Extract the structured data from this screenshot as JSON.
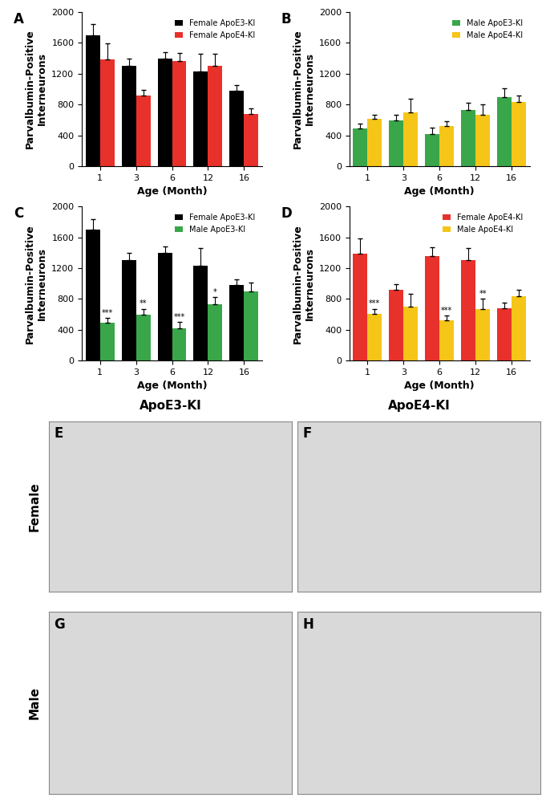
{
  "chart_data": [
    {
      "type": "bar",
      "title": "A",
      "categories": [
        "1",
        "3",
        "6",
        "12",
        "16"
      ],
      "x_label": "Age (Month)",
      "y_label": "Parvalbumin-Positive\nInterneurons",
      "ylim": [
        0,
        2000
      ],
      "yticks": [
        0,
        400,
        800,
        1200,
        1600,
        2000
      ],
      "legend": "upper right",
      "series": [
        {
          "name": "Female ApoE3-KI",
          "color": "#000000",
          "values": [
            1700,
            1300,
            1400,
            1230,
            980
          ],
          "errors": [
            140,
            100,
            80,
            230,
            70
          ]
        },
        {
          "name": "Female ApoE4-KI",
          "color": "#e8312b",
          "values": [
            1390,
            920,
            1360,
            1300,
            680
          ],
          "errors": [
            200,
            70,
            110,
            160,
            70
          ]
        }
      ]
    },
    {
      "type": "bar",
      "title": "B",
      "categories": [
        "1",
        "3",
        "6",
        "12",
        "16"
      ],
      "x_label": "Age (Month)",
      "y_label": "Parvalbumin-Positive\nInterneurons",
      "ylim": [
        0,
        2000
      ],
      "yticks": [
        0,
        400,
        800,
        1200,
        1600,
        2000
      ],
      "legend": "upper right",
      "series": [
        {
          "name": "Male ApoE3-KI",
          "color": "#3aa64a",
          "values": [
            490,
            590,
            420,
            730,
            900
          ],
          "errors": [
            60,
            80,
            80,
            90,
            110
          ]
        },
        {
          "name": "Male ApoE4-KI",
          "color": "#f5c518",
          "values": [
            610,
            700,
            520,
            670,
            830
          ],
          "errors": [
            60,
            170,
            60,
            130,
            90
          ]
        }
      ]
    },
    {
      "type": "bar",
      "title": "C",
      "categories": [
        "1",
        "3",
        "6",
        "12",
        "16"
      ],
      "x_label": "Age (Month)",
      "y_label": "Parvalbumin-Positive\nInterneurons",
      "ylim": [
        0,
        2000
      ],
      "yticks": [
        0,
        400,
        800,
        1200,
        1600,
        2000
      ],
      "legend": "upper right",
      "series": [
        {
          "name": "Female ApoE3-KI",
          "color": "#000000",
          "values": [
            1700,
            1300,
            1400,
            1230,
            980
          ],
          "errors": [
            140,
            100,
            80,
            230,
            70
          ]
        },
        {
          "name": "Male ApoE3-KI",
          "color": "#3aa64a",
          "values": [
            490,
            590,
            420,
            730,
            900
          ],
          "errors": [
            60,
            80,
            80,
            90,
            110
          ],
          "significance": [
            "***",
            "**",
            "***",
            "*",
            null
          ]
        }
      ]
    },
    {
      "type": "bar",
      "title": "D",
      "categories": [
        "1",
        "3",
        "6",
        "12",
        "16"
      ],
      "x_label": "Age (Month)",
      "y_label": "Parvalbumin-Positive\nInterneurons",
      "ylim": [
        0,
        2000
      ],
      "yticks": [
        0,
        400,
        800,
        1200,
        1600,
        2000
      ],
      "legend": "upper right",
      "series": [
        {
          "name": "Female ApoE4-KI",
          "color": "#e8312b",
          "values": [
            1390,
            920,
            1360,
            1300,
            680
          ],
          "errors": [
            200,
            70,
            110,
            160,
            70
          ]
        },
        {
          "name": "Male ApoE4-KI",
          "color": "#f5c518",
          "values": [
            610,
            700,
            520,
            670,
            830
          ],
          "errors": [
            60,
            170,
            60,
            130,
            90
          ],
          "significance": [
            "***",
            null,
            "***",
            "**",
            null
          ]
        }
      ]
    }
  ],
  "image_panels": {
    "column_titles": [
      "ApoE3-KI",
      "ApoE4-KI"
    ],
    "row_titles": [
      "Female",
      "Male"
    ],
    "panel_labels": [
      "E",
      "F",
      "G",
      "H"
    ]
  }
}
